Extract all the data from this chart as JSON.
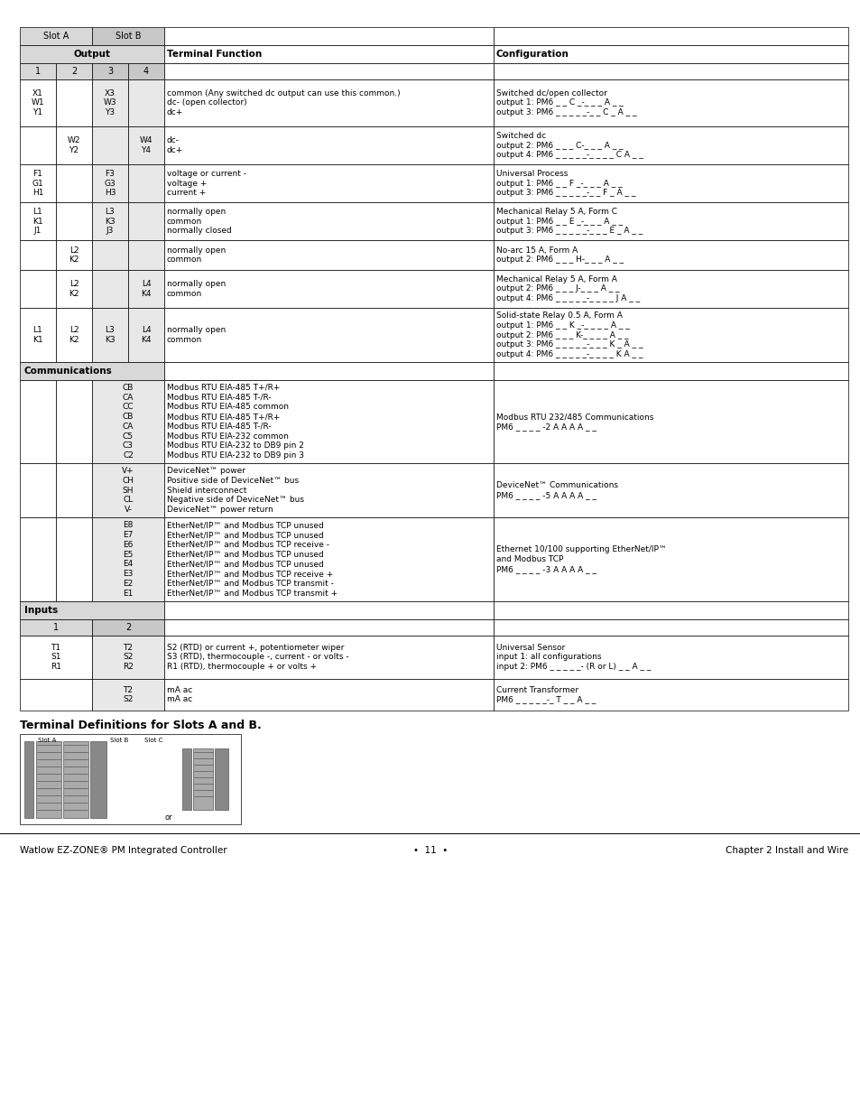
{
  "title": "Terminal Definitions for Slots A and B.",
  "footer_left": "Watlow EZ-ZONE® PM Integrated Controller",
  "footer_mid": "•  11  •",
  "footer_right": "Chapter 2 Install and Wire",
  "bg_white": "#ffffff",
  "bg_light": "#d8d8d8",
  "bg_medium": "#c0c0c0",
  "bg_slot_b": "#e0e0e0",
  "line_color": "#000000",
  "text_color": "#000000"
}
